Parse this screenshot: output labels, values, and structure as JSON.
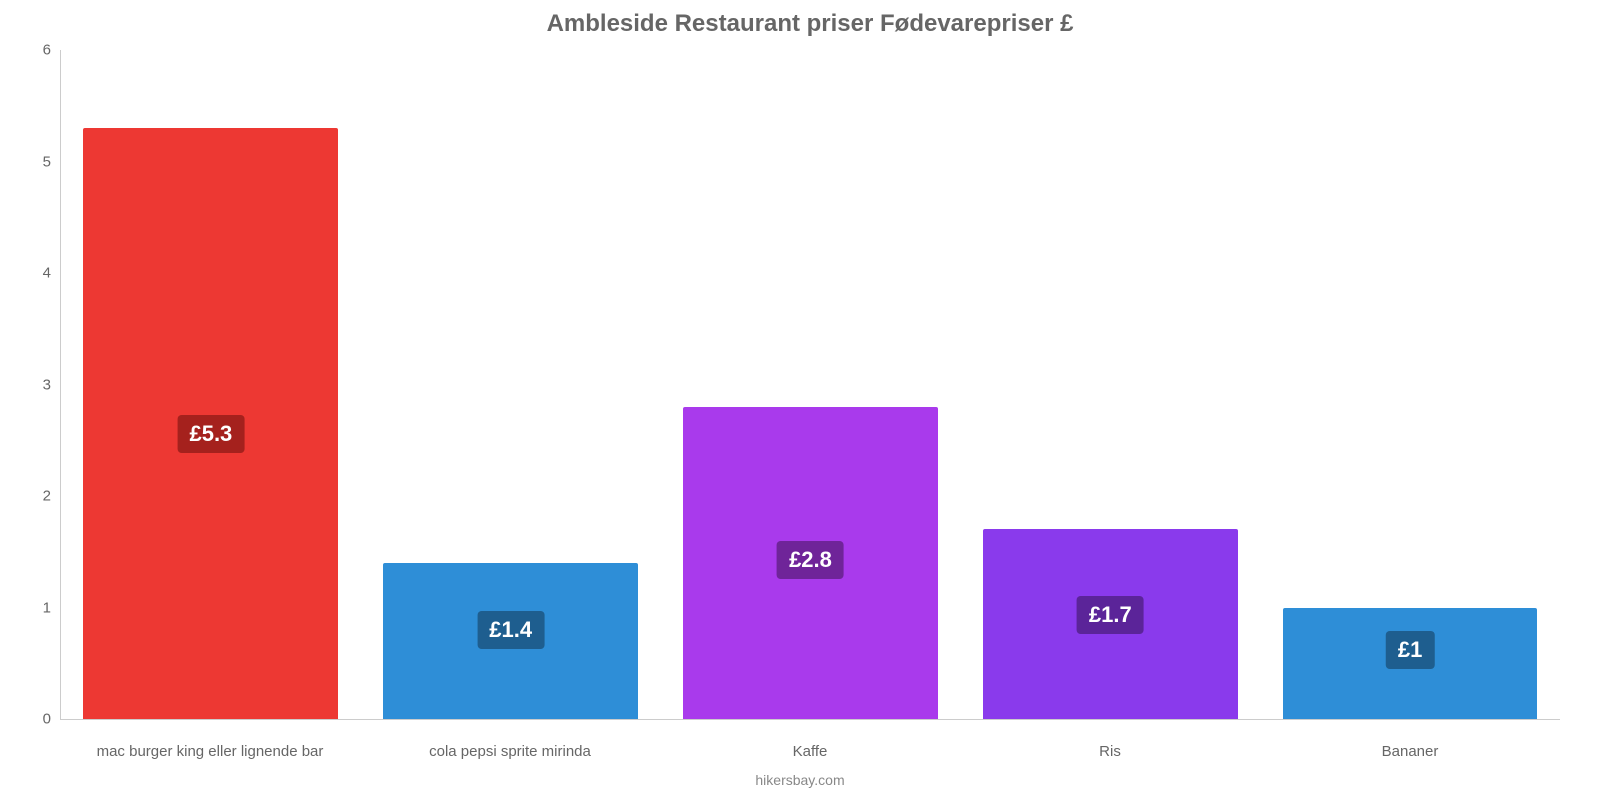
{
  "chart": {
    "type": "bar",
    "title": "Ambleside Restaurant priser Fødevarepriser £",
    "title_fontsize": 24,
    "title_color": "#666666",
    "footer": "hikersbay.com",
    "footer_fontsize": 14,
    "footer_color": "#888888",
    "background_color": "#ffffff",
    "axis_color": "#cccccc",
    "ylim_min": 0,
    "ylim_max": 6,
    "ytick_step": 1,
    "ytick_fontsize": 15,
    "ytick_color": "#666666",
    "xlabel_fontsize": 15,
    "xlabel_color": "#666666",
    "bar_width_pct": 85,
    "value_label_fontsize": 22,
    "yticks": [
      {
        "value": 0,
        "label": "0"
      },
      {
        "value": 1,
        "label": "1"
      },
      {
        "value": 2,
        "label": "2"
      },
      {
        "value": 3,
        "label": "3"
      },
      {
        "value": 4,
        "label": "4"
      },
      {
        "value": 5,
        "label": "5"
      },
      {
        "value": 6,
        "label": "6"
      }
    ],
    "bars": [
      {
        "category": "mac burger king eller lignende bar",
        "value": 5.3,
        "label": "£5.3",
        "color": "#ed3833",
        "label_bg": "#a5211d"
      },
      {
        "category": "cola pepsi sprite mirinda",
        "value": 1.4,
        "label": "£1.4",
        "color": "#2e8ed7",
        "label_bg": "#1e5e8f"
      },
      {
        "category": "Kaffe",
        "value": 2.8,
        "label": "£2.8",
        "color": "#a93aec",
        "label_bg": "#6f2499"
      },
      {
        "category": "Ris",
        "value": 1.7,
        "label": "£1.7",
        "color": "#8a3aec",
        "label_bg": "#5b2499"
      },
      {
        "category": "Bananer",
        "value": 1.0,
        "label": "£1",
        "color": "#2e8ed7",
        "label_bg": "#1e5e8f"
      }
    ]
  }
}
